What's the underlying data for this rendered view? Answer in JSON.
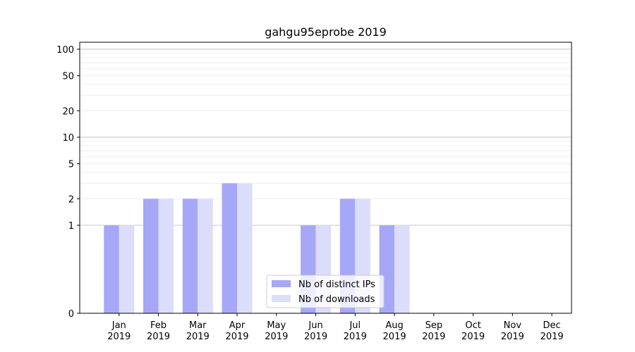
{
  "chart_data": {
    "type": "bar",
    "title": "gahgu95eprobe 2019",
    "categories": [
      "Jan\n2019",
      "Feb\n2019",
      "Mar\n2019",
      "Apr\n2019",
      "May\n2019",
      "Jun\n2019",
      "Jul\n2019",
      "Aug\n2019",
      "Sep\n2019",
      "Oct\n2019",
      "Nov\n2019",
      "Dec\n2019"
    ],
    "series": [
      {
        "name": "Nb of distinct IPs",
        "color": "#a7a7f7",
        "values": [
          1,
          2,
          2,
          3,
          0,
          1,
          2,
          1,
          0,
          0,
          0,
          0
        ]
      },
      {
        "name": "Nb of downloads",
        "color": "#dcdcfb",
        "values": [
          1,
          2,
          2,
          3,
          0,
          1,
          2,
          1,
          0,
          0,
          0,
          0
        ]
      }
    ],
    "yscale": "symlog",
    "yticks": [
      0,
      1,
      2,
      5,
      10,
      20,
      50,
      100
    ],
    "ylim": [
      0,
      120
    ],
    "grid": true,
    "legend_position": "lower center"
  }
}
